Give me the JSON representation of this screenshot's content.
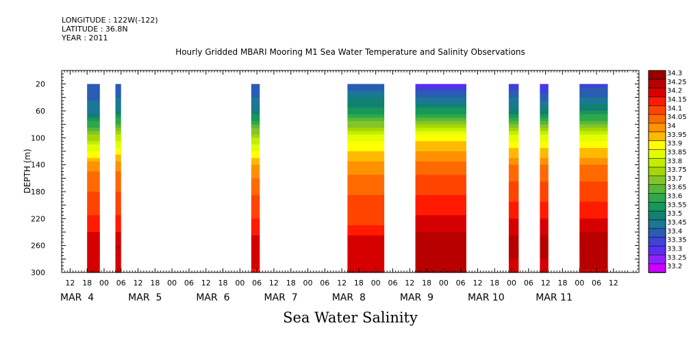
{
  "header": {
    "longitude": "LONGITUDE : 122W(-122)",
    "latitude": "LATITUDE : 36.8N",
    "year": "YEAR : 2011"
  },
  "chart_data": {
    "type": "heatmap",
    "title": "Hourly Gridded MBARI Mooring M1 Sea Water Temperature and Salinity Observations",
    "ylabel": "DEPTH (m)",
    "variable_label": "Sea Water Salinity",
    "ylim": [
      300,
      0
    ],
    "yticks": [
      20,
      60,
      100,
      140,
      180,
      220,
      260,
      300
    ],
    "x_range_hours": [
      -15,
      189
    ],
    "x_origin_hour_label": "MAR 4 00",
    "xtick_hour_labels": [
      "12",
      "18",
      "00",
      "06",
      "12",
      "18",
      "00",
      "06",
      "12",
      "18",
      "00",
      "06",
      "12",
      "18",
      "00",
      "06",
      "12",
      "18",
      "00",
      "06",
      "12",
      "18",
      "00",
      "06",
      "12",
      "18",
      "00",
      "06",
      "12",
      "18",
      "00",
      "06",
      "12"
    ],
    "date_labels": [
      "MAR  4",
      "MAR  5",
      "MAR  6",
      "MAR  7",
      "MAR  8",
      "MAR  9",
      "MAR 10",
      "MAR 11"
    ],
    "colorbar": {
      "levels": [
        "34.3",
        "34.25",
        "34.2",
        "34.15",
        "34.1",
        "34.05",
        "34",
        "33.95",
        "33.9",
        "33.85",
        "33.8",
        "33.75",
        "33.7",
        "33.65",
        "33.6",
        "33.55",
        "33.5",
        "33.45",
        "33.4",
        "33.35",
        "33.3",
        "33.25",
        "33.2"
      ],
      "colors": [
        "#990000",
        "#b80000",
        "#d60000",
        "#ff1a00",
        "#ff4400",
        "#ff6a00",
        "#ff9200",
        "#ffba00",
        "#ffff00",
        "#e2ff00",
        "#c2ee00",
        "#a5d800",
        "#84c42a",
        "#57b833",
        "#2ea84a",
        "#17975a",
        "#108070",
        "#1a7896",
        "#2a5cb4",
        "#3d42d8",
        "#5a2ef0",
        "#8e22ff",
        "#cc00ff"
      ]
    },
    "segments": [
      {
        "start_hour": -6,
        "end_hour": -1.5,
        "profile": [
          {
            "depth": 20,
            "value": 33.38
          },
          {
            "depth": 60,
            "value": 33.45
          },
          {
            "depth": 100,
            "value": 33.75
          },
          {
            "depth": 140,
            "value": 34.0
          },
          {
            "depth": 180,
            "value": 34.08
          },
          {
            "depth": 220,
            "value": 34.13
          },
          {
            "depth": 260,
            "value": 34.22
          },
          {
            "depth": 300,
            "value": 34.18
          }
        ]
      },
      {
        "start_hour": 4,
        "end_hour": 6,
        "profile": [
          {
            "depth": 20,
            "value": 33.38
          },
          {
            "depth": 60,
            "value": 33.48
          },
          {
            "depth": 100,
            "value": 33.8
          },
          {
            "depth": 140,
            "value": 34.0
          },
          {
            "depth": 180,
            "value": 34.08
          },
          {
            "depth": 220,
            "value": 34.13
          },
          {
            "depth": 260,
            "value": 34.23
          },
          {
            "depth": 300,
            "value": 34.18
          }
        ]
      },
      {
        "start_hour": 52,
        "end_hour": 55,
        "profile": [
          {
            "depth": 20,
            "value": 33.38
          },
          {
            "depth": 60,
            "value": 33.47
          },
          {
            "depth": 100,
            "value": 33.78
          },
          {
            "depth": 140,
            "value": 33.97
          },
          {
            "depth": 180,
            "value": 34.07
          },
          {
            "depth": 220,
            "value": 34.12
          },
          {
            "depth": 260,
            "value": 34.2
          },
          {
            "depth": 300,
            "value": 34.17
          }
        ]
      },
      {
        "start_hour": 86,
        "end_hour": 99,
        "profile": [
          {
            "depth": 20,
            "value": 33.38
          },
          {
            "depth": 60,
            "value": 33.55
          },
          {
            "depth": 100,
            "value": 33.85
          },
          {
            "depth": 140,
            "value": 34.0
          },
          {
            "depth": 180,
            "value": 34.07
          },
          {
            "depth": 220,
            "value": 34.1
          },
          {
            "depth": 260,
            "value": 34.22
          },
          {
            "depth": 300,
            "value": 34.18
          }
        ]
      },
      {
        "start_hour": 110,
        "end_hour": 128,
        "profile": [
          {
            "depth": 20,
            "value": 33.3
          },
          {
            "depth": 60,
            "value": 33.55
          },
          {
            "depth": 100,
            "value": 33.9
          },
          {
            "depth": 140,
            "value": 34.05
          },
          {
            "depth": 180,
            "value": 34.12
          },
          {
            "depth": 220,
            "value": 34.18
          },
          {
            "depth": 260,
            "value": 34.27
          },
          {
            "depth": 300,
            "value": 34.24
          }
        ]
      },
      {
        "start_hour": 143,
        "end_hour": 146.5,
        "profile": [
          {
            "depth": 20,
            "value": 33.33
          },
          {
            "depth": 60,
            "value": 33.5
          },
          {
            "depth": 100,
            "value": 33.85
          },
          {
            "depth": 140,
            "value": 34.03
          },
          {
            "depth": 180,
            "value": 34.1
          },
          {
            "depth": 220,
            "value": 34.17
          },
          {
            "depth": 260,
            "value": 34.25
          },
          {
            "depth": 300,
            "value": 34.2
          }
        ]
      },
      {
        "start_hour": 154,
        "end_hour": 157,
        "profile": [
          {
            "depth": 20,
            "value": 33.3
          },
          {
            "depth": 60,
            "value": 33.5
          },
          {
            "depth": 100,
            "value": 33.85
          },
          {
            "depth": 140,
            "value": 34.03
          },
          {
            "depth": 180,
            "value": 34.1
          },
          {
            "depth": 220,
            "value": 34.17
          },
          {
            "depth": 260,
            "value": 34.25
          },
          {
            "depth": 300,
            "value": 34.2
          }
        ]
      },
      {
        "start_hour": 168,
        "end_hour": 178,
        "profile": [
          {
            "depth": 20,
            "value": 33.35
          },
          {
            "depth": 60,
            "value": 33.52
          },
          {
            "depth": 100,
            "value": 33.85
          },
          {
            "depth": 140,
            "value": 34.03
          },
          {
            "depth": 180,
            "value": 34.1
          },
          {
            "depth": 220,
            "value": 34.17
          },
          {
            "depth": 260,
            "value": 34.27
          },
          {
            "depth": 300,
            "value": 34.22
          }
        ]
      }
    ]
  }
}
